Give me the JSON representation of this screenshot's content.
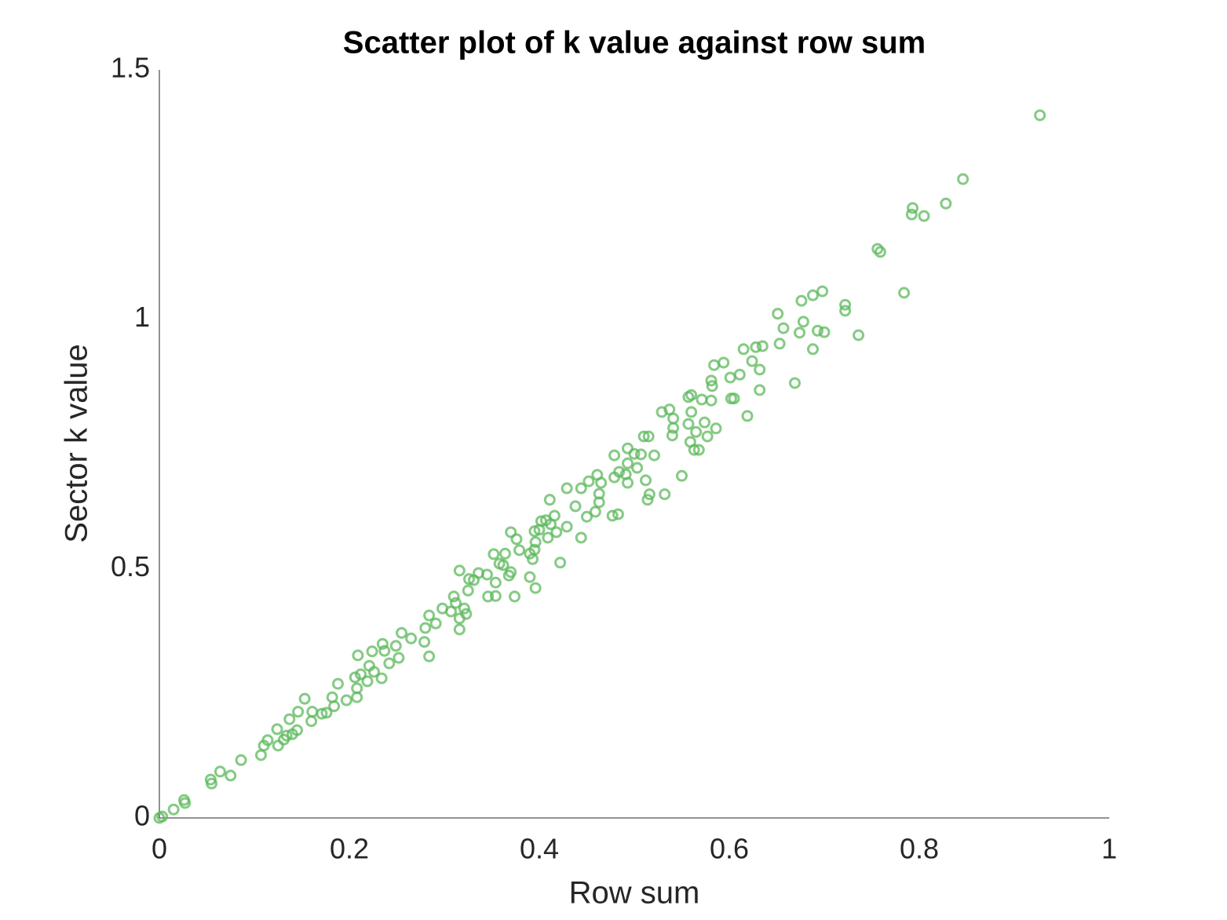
{
  "chart_data": {
    "type": "scatter",
    "title": "Scatter plot of k value against row sum",
    "x_label": "Row sum",
    "y_label": "Sector k value",
    "color": "#5cb85c",
    "xlim": [
      0,
      1
    ],
    "xticks": [
      0,
      0.2,
      0.4,
      0.6,
      0.8,
      1
    ],
    "ylim": [
      0,
      1.5
    ],
    "yticks": [
      0,
      0.5,
      1,
      1.5
    ],
    "x": [
      0.927,
      0.846,
      0.828,
      0.793,
      0.792,
      0.805,
      0.756,
      0.759,
      0.784,
      0.698,
      0.688,
      0.676,
      0.722,
      0.722,
      0.651,
      0.678,
      0.657,
      0.693,
      0.7,
      0.736,
      0.674,
      0.615,
      0.628,
      0.635,
      0.653,
      0.688,
      0.624,
      0.632,
      0.594,
      0.584,
      0.611,
      0.601,
      0.581,
      0.669,
      0.582,
      0.632,
      0.56,
      0.557,
      0.602,
      0.605,
      0.581,
      0.571,
      0.537,
      0.529,
      0.619,
      0.56,
      0.541,
      0.557,
      0.574,
      0.541,
      0.586,
      0.565,
      0.54,
      0.51,
      0.515,
      0.577,
      0.559,
      0.563,
      0.568,
      0.493,
      0.479,
      0.5,
      0.507,
      0.521,
      0.493,
      0.503,
      0.484,
      0.491,
      0.479,
      0.493,
      0.512,
      0.55,
      0.461,
      0.452,
      0.465,
      0.429,
      0.444,
      0.463,
      0.516,
      0.532,
      0.514,
      0.411,
      0.438,
      0.463,
      0.459,
      0.45,
      0.477,
      0.483,
      0.416,
      0.407,
      0.402,
      0.412,
      0.429,
      0.4,
      0.395,
      0.37,
      0.376,
      0.418,
      0.444,
      0.409,
      0.396,
      0.395,
      0.379,
      0.352,
      0.364,
      0.39,
      0.393,
      0.422,
      0.358,
      0.362,
      0.316,
      0.336,
      0.368,
      0.37,
      0.345,
      0.39,
      0.326,
      0.331,
      0.354,
      0.396,
      0.325,
      0.31,
      0.346,
      0.354,
      0.374,
      0.312,
      0.298,
      0.321,
      0.307,
      0.323,
      0.284,
      0.316,
      0.291,
      0.28,
      0.316,
      0.255,
      0.265,
      0.279,
      0.235,
      0.249,
      0.237,
      0.224,
      0.209,
      0.284,
      0.252,
      0.242,
      0.221,
      0.212,
      0.226,
      0.234,
      0.206,
      0.188,
      0.219,
      0.208,
      0.182,
      0.208,
      0.153,
      0.197,
      0.184,
      0.161,
      0.171,
      0.146,
      0.176,
      0.137,
      0.16,
      0.124,
      0.145,
      0.134,
      0.14,
      0.114,
      0.131,
      0.11,
      0.125,
      0.107,
      0.086,
      0.064,
      0.075,
      0.054,
      0.055,
      0.026,
      0.027,
      0.015,
      0.003,
      0.0
    ],
    "values": [
      1.409,
      1.281,
      1.232,
      1.223,
      1.21,
      1.207,
      1.141,
      1.135,
      1.053,
      1.056,
      1.048,
      1.037,
      1.029,
      1.017,
      1.011,
      0.995,
      0.982,
      0.977,
      0.974,
      0.968,
      0.973,
      0.94,
      0.944,
      0.946,
      0.951,
      0.94,
      0.916,
      0.899,
      0.913,
      0.908,
      0.889,
      0.883,
      0.877,
      0.872,
      0.866,
      0.858,
      0.848,
      0.844,
      0.841,
      0.841,
      0.837,
      0.839,
      0.819,
      0.814,
      0.806,
      0.814,
      0.801,
      0.79,
      0.793,
      0.782,
      0.781,
      0.774,
      0.767,
      0.765,
      0.765,
      0.765,
      0.754,
      0.738,
      0.738,
      0.741,
      0.727,
      0.73,
      0.729,
      0.727,
      0.711,
      0.702,
      0.694,
      0.689,
      0.683,
      0.672,
      0.677,
      0.686,
      0.688,
      0.675,
      0.672,
      0.661,
      0.661,
      0.65,
      0.649,
      0.649,
      0.638,
      0.638,
      0.625,
      0.633,
      0.614,
      0.604,
      0.606,
      0.609,
      0.606,
      0.597,
      0.595,
      0.589,
      0.584,
      0.578,
      0.575,
      0.573,
      0.559,
      0.573,
      0.562,
      0.562,
      0.553,
      0.538,
      0.537,
      0.529,
      0.53,
      0.53,
      0.519,
      0.512,
      0.51,
      0.507,
      0.496,
      0.491,
      0.486,
      0.493,
      0.488,
      0.483,
      0.479,
      0.477,
      0.472,
      0.461,
      0.456,
      0.444,
      0.444,
      0.445,
      0.444,
      0.431,
      0.42,
      0.42,
      0.414,
      0.409,
      0.406,
      0.4,
      0.39,
      0.381,
      0.378,
      0.371,
      0.36,
      0.353,
      0.349,
      0.345,
      0.335,
      0.334,
      0.326,
      0.324,
      0.321,
      0.31,
      0.305,
      0.288,
      0.293,
      0.28,
      0.282,
      0.269,
      0.274,
      0.26,
      0.242,
      0.242,
      0.239,
      0.236,
      0.224,
      0.213,
      0.209,
      0.213,
      0.211,
      0.198,
      0.194,
      0.178,
      0.176,
      0.165,
      0.168,
      0.156,
      0.157,
      0.145,
      0.145,
      0.126,
      0.116,
      0.093,
      0.085,
      0.077,
      0.069,
      0.036,
      0.03,
      0.017,
      0.003,
      0.0
    ]
  }
}
